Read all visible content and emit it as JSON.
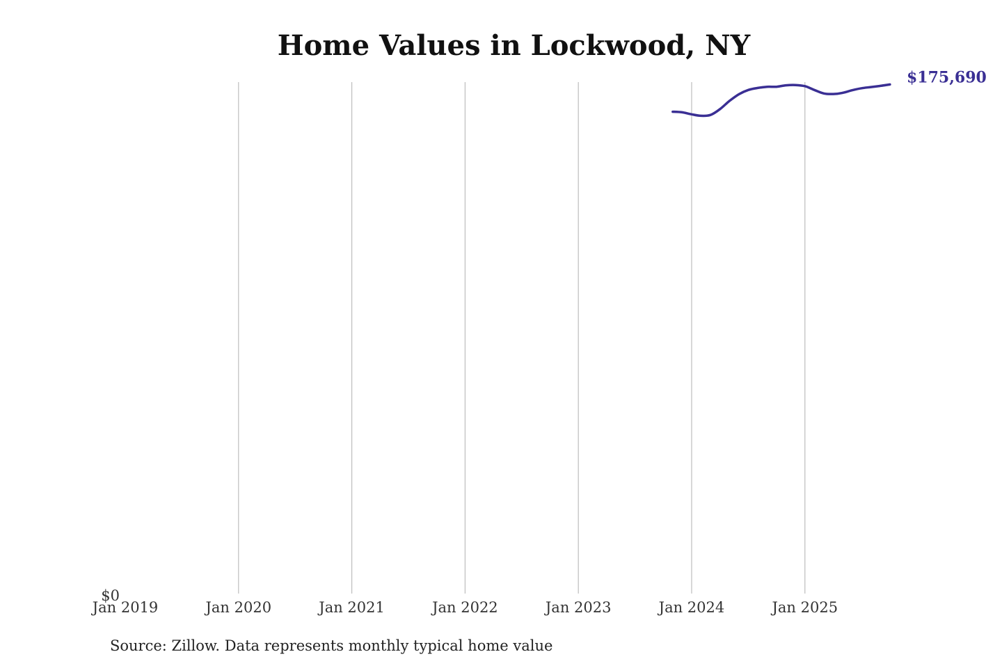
{
  "chart_data": {
    "type": "line",
    "title": "Home Values in Lockwood, NY",
    "x_ticks": [
      "Jan 2019",
      "Jan 2020",
      "Jan 2021",
      "Jan 2022",
      "Jan 2023",
      "Jan 2024",
      "Jan 2025"
    ],
    "y_ticks": [
      {
        "value": 0,
        "label": "$0"
      }
    ],
    "xlim": [
      "2019-01",
      "2025-12"
    ],
    "ylim": [
      0,
      176500
    ],
    "grid": "vertical",
    "series": [
      {
        "color": "#3a2f94",
        "end_label": "$175,690",
        "points": [
          {
            "x": "2023-11",
            "y": 166300
          },
          {
            "x": "2023-12",
            "y": 166100
          },
          {
            "x": "2024-01",
            "y": 165400
          },
          {
            "x": "2024-02",
            "y": 164900
          },
          {
            "x": "2024-03",
            "y": 165200
          },
          {
            "x": "2024-04",
            "y": 167200
          },
          {
            "x": "2024-05",
            "y": 170000
          },
          {
            "x": "2024-06",
            "y": 172300
          },
          {
            "x": "2024-07",
            "y": 173800
          },
          {
            "x": "2024-08",
            "y": 174500
          },
          {
            "x": "2024-09",
            "y": 174900
          },
          {
            "x": "2024-10",
            "y": 174900
          },
          {
            "x": "2024-11",
            "y": 175400
          },
          {
            "x": "2024-12",
            "y": 175500
          },
          {
            "x": "2025-01",
            "y": 175100
          },
          {
            "x": "2025-02",
            "y": 173800
          },
          {
            "x": "2025-03",
            "y": 172600
          },
          {
            "x": "2025-04",
            "y": 172400
          },
          {
            "x": "2025-05",
            "y": 172800
          },
          {
            "x": "2025-06",
            "y": 173700
          },
          {
            "x": "2025-07",
            "y": 174400
          },
          {
            "x": "2025-08",
            "y": 174800
          },
          {
            "x": "2025-09",
            "y": 175200
          },
          {
            "x": "2025-10",
            "y": 175690
          }
        ]
      }
    ]
  },
  "source_note": "Source: Zillow. Data represents monthly typical home value"
}
